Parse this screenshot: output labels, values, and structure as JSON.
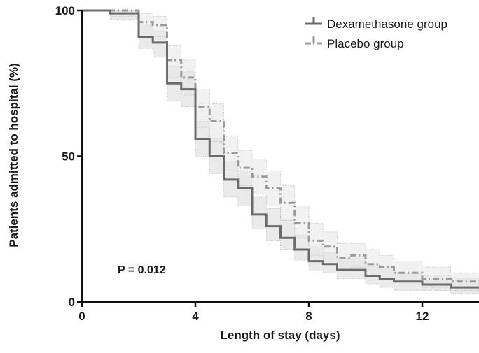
{
  "chart_data": {
    "type": "line",
    "subtype": "kaplan-meier-step",
    "title": "",
    "xlabel": "Length of stay (days)",
    "ylabel": "Patients admitted to hospital (%)",
    "xlim": [
      0,
      14
    ],
    "ylim": [
      0,
      100
    ],
    "xticks": [
      0,
      4,
      8,
      12
    ],
    "yticks": [
      0,
      50,
      100
    ],
    "grid": false,
    "legend_position": "top-right",
    "annotation": "P = 0.012",
    "series": [
      {
        "name": "Dexamethasone group",
        "style": "solid",
        "color": "#6b6b6b",
        "steps": [
          {
            "x": 0,
            "y": 100
          },
          {
            "x": 1,
            "y": 99
          },
          {
            "x": 2,
            "y": 91
          },
          {
            "x": 2.5,
            "y": 89
          },
          {
            "x": 3,
            "y": 75
          },
          {
            "x": 3.5,
            "y": 73
          },
          {
            "x": 4,
            "y": 56
          },
          {
            "x": 4.5,
            "y": 50
          },
          {
            "x": 5,
            "y": 42
          },
          {
            "x": 5.5,
            "y": 39
          },
          {
            "x": 6,
            "y": 30
          },
          {
            "x": 6.5,
            "y": 26
          },
          {
            "x": 7,
            "y": 22
          },
          {
            "x": 7.5,
            "y": 18
          },
          {
            "x": 8,
            "y": 14
          },
          {
            "x": 8.5,
            "y": 13
          },
          {
            "x": 9,
            "y": 11
          },
          {
            "x": 10,
            "y": 9
          },
          {
            "x": 10.5,
            "y": 8
          },
          {
            "x": 11,
            "y": 7
          },
          {
            "x": 12,
            "y": 6
          },
          {
            "x": 13,
            "y": 5
          },
          {
            "x": 14,
            "y": 5
          }
        ],
        "ci_upper": [
          {
            "x": 0,
            "y": 100
          },
          {
            "x": 1,
            "y": 100
          },
          {
            "x": 2,
            "y": 95
          },
          {
            "x": 2.5,
            "y": 93
          },
          {
            "x": 3,
            "y": 81
          },
          {
            "x": 3.5,
            "y": 79
          },
          {
            "x": 4,
            "y": 62
          },
          {
            "x": 4.5,
            "y": 56
          },
          {
            "x": 5,
            "y": 48
          },
          {
            "x": 5.5,
            "y": 45
          },
          {
            "x": 6,
            "y": 36
          },
          {
            "x": 6.5,
            "y": 32
          },
          {
            "x": 7,
            "y": 28
          },
          {
            "x": 7.5,
            "y": 23
          },
          {
            "x": 8,
            "y": 19
          },
          {
            "x": 8.5,
            "y": 17
          },
          {
            "x": 9,
            "y": 15
          },
          {
            "x": 10,
            "y": 13
          },
          {
            "x": 10.5,
            "y": 12
          },
          {
            "x": 11,
            "y": 10
          },
          {
            "x": 12,
            "y": 9
          },
          {
            "x": 13,
            "y": 8
          },
          {
            "x": 14,
            "y": 8
          }
        ],
        "ci_lower": [
          {
            "x": 0,
            "y": 100
          },
          {
            "x": 1,
            "y": 97
          },
          {
            "x": 2,
            "y": 87
          },
          {
            "x": 2.5,
            "y": 84
          },
          {
            "x": 3,
            "y": 69
          },
          {
            "x": 3.5,
            "y": 67
          },
          {
            "x": 4,
            "y": 50
          },
          {
            "x": 4.5,
            "y": 44
          },
          {
            "x": 5,
            "y": 36
          },
          {
            "x": 5.5,
            "y": 33
          },
          {
            "x": 6,
            "y": 25
          },
          {
            "x": 6.5,
            "y": 21
          },
          {
            "x": 7,
            "y": 18
          },
          {
            "x": 7.5,
            "y": 14
          },
          {
            "x": 8,
            "y": 11
          },
          {
            "x": 8.5,
            "y": 10
          },
          {
            "x": 9,
            "y": 8
          },
          {
            "x": 10,
            "y": 6
          },
          {
            "x": 10.5,
            "y": 5
          },
          {
            "x": 11,
            "y": 4
          },
          {
            "x": 12,
            "y": 4
          },
          {
            "x": 13,
            "y": 3
          },
          {
            "x": 14,
            "y": 3
          }
        ]
      },
      {
        "name": "Placebo group",
        "style": "dash-dot",
        "color": "#9a9a9a",
        "steps": [
          {
            "x": 0,
            "y": 100
          },
          {
            "x": 1,
            "y": 100
          },
          {
            "x": 2,
            "y": 96
          },
          {
            "x": 2.5,
            "y": 95
          },
          {
            "x": 3,
            "y": 83
          },
          {
            "x": 3.5,
            "y": 77
          },
          {
            "x": 4,
            "y": 67
          },
          {
            "x": 4.5,
            "y": 62
          },
          {
            "x": 5,
            "y": 51
          },
          {
            "x": 5.5,
            "y": 46
          },
          {
            "x": 6,
            "y": 43
          },
          {
            "x": 6.5,
            "y": 39
          },
          {
            "x": 7,
            "y": 34
          },
          {
            "x": 7.5,
            "y": 27
          },
          {
            "x": 8,
            "y": 21
          },
          {
            "x": 8.5,
            "y": 19
          },
          {
            "x": 9,
            "y": 15
          },
          {
            "x": 9.5,
            "y": 16
          },
          {
            "x": 10,
            "y": 13
          },
          {
            "x": 10.5,
            "y": 12
          },
          {
            "x": 11,
            "y": 10
          },
          {
            "x": 12,
            "y": 8
          },
          {
            "x": 13,
            "y": 7
          },
          {
            "x": 14,
            "y": 7
          }
        ],
        "ci_upper": [
          {
            "x": 0,
            "y": 100
          },
          {
            "x": 1,
            "y": 100
          },
          {
            "x": 2,
            "y": 99
          },
          {
            "x": 2.5,
            "y": 98
          },
          {
            "x": 3,
            "y": 88
          },
          {
            "x": 3.5,
            "y": 83
          },
          {
            "x": 4,
            "y": 73
          },
          {
            "x": 4.5,
            "y": 68
          },
          {
            "x": 5,
            "y": 57
          },
          {
            "x": 5.5,
            "y": 52
          },
          {
            "x": 6,
            "y": 49
          },
          {
            "x": 6.5,
            "y": 45
          },
          {
            "x": 7,
            "y": 40
          },
          {
            "x": 7.5,
            "y": 33
          },
          {
            "x": 8,
            "y": 27
          },
          {
            "x": 8.5,
            "y": 24
          },
          {
            "x": 9,
            "y": 20
          },
          {
            "x": 9.5,
            "y": 20
          },
          {
            "x": 10,
            "y": 18
          },
          {
            "x": 10.5,
            "y": 16
          },
          {
            "x": 11,
            "y": 14
          },
          {
            "x": 12,
            "y": 12
          },
          {
            "x": 13,
            "y": 10
          },
          {
            "x": 14,
            "y": 10
          }
        ],
        "ci_lower": [
          {
            "x": 0,
            "y": 100
          },
          {
            "x": 1,
            "y": 98
          },
          {
            "x": 2,
            "y": 92
          },
          {
            "x": 2.5,
            "y": 91
          },
          {
            "x": 3,
            "y": 77
          },
          {
            "x": 3.5,
            "y": 71
          },
          {
            "x": 4,
            "y": 60
          },
          {
            "x": 4.5,
            "y": 55
          },
          {
            "x": 5,
            "y": 45
          },
          {
            "x": 5.5,
            "y": 40
          },
          {
            "x": 6,
            "y": 37
          },
          {
            "x": 6.5,
            "y": 33
          },
          {
            "x": 7,
            "y": 28
          },
          {
            "x": 7.5,
            "y": 22
          },
          {
            "x": 8,
            "y": 16
          },
          {
            "x": 8.5,
            "y": 14
          },
          {
            "x": 9,
            "y": 11
          },
          {
            "x": 9.5,
            "y": 12
          },
          {
            "x": 10,
            "y": 9
          },
          {
            "x": 10.5,
            "y": 8
          },
          {
            "x": 11,
            "y": 7
          },
          {
            "x": 12,
            "y": 5
          },
          {
            "x": 13,
            "y": 4
          },
          {
            "x": 14,
            "y": 4
          }
        ]
      }
    ]
  }
}
